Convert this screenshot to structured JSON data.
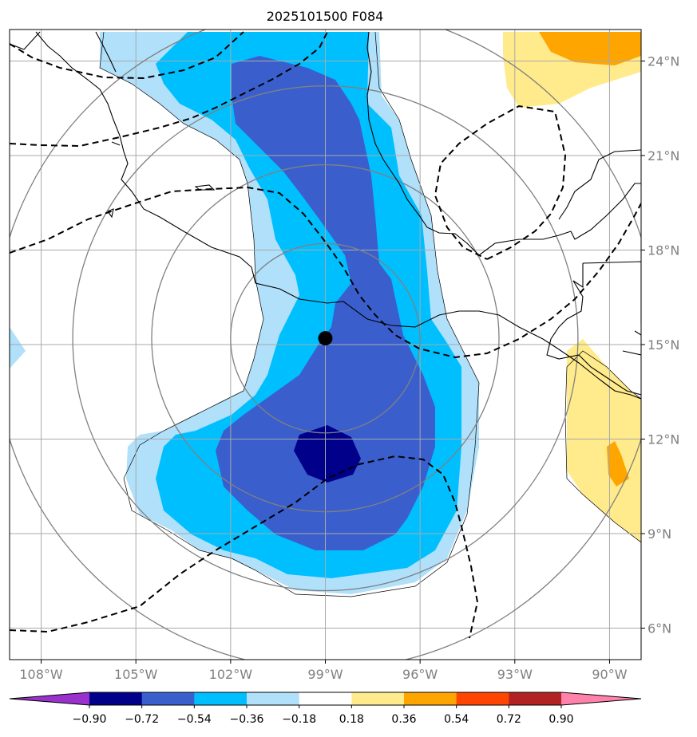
{
  "title": "2025101500 F084",
  "map": {
    "lon_range": [
      -109,
      -89
    ],
    "lat_range": [
      5,
      25
    ],
    "lon_ticks": [
      {
        "value": -108,
        "label": "108°W"
      },
      {
        "value": -105,
        "label": "105°W"
      },
      {
        "value": -102,
        "label": "102°W"
      },
      {
        "value": -99,
        "label": "99°W"
      },
      {
        "value": -96,
        "label": "96°W"
      },
      {
        "value": -93,
        "label": "93°W"
      },
      {
        "value": -90,
        "label": "90°W"
      }
    ],
    "lat_ticks": [
      {
        "value": 24,
        "label": "24°N"
      },
      {
        "value": 21,
        "label": "21°N"
      },
      {
        "value": 18,
        "label": "18°N"
      },
      {
        "value": 15,
        "label": "15°N"
      },
      {
        "value": 12,
        "label": "12°N"
      },
      {
        "value": 9,
        "label": "9°N"
      },
      {
        "value": 6,
        "label": "6°N"
      }
    ],
    "center_marker": {
      "lon": -99.0,
      "lat": 15.2
    },
    "range_rings_deg": [
      3,
      5.5,
      8,
      10.5
    ]
  },
  "colorbar": {
    "levels": [
      "−0.90",
      "−0.72",
      "−0.54",
      "−0.36",
      "−0.18",
      "0.18",
      "0.36",
      "0.54",
      "0.72",
      "0.90"
    ],
    "colors": [
      "#9932cc",
      "#00008b",
      "#3a5fcd",
      "#00bfff",
      "#b0e0fa",
      "#ffffff",
      "#ffeb8b",
      "#ffa500",
      "#ff4500",
      "#b22222",
      "#ff82ab"
    ]
  },
  "colors": {
    "light_blue": "#b0e0fa",
    "sky_blue": "#00bfff",
    "royal_blue": "#3a5fcd",
    "navy": "#00008b",
    "light_yellow": "#ffeb8b",
    "orange": "#ffa500",
    "grid": "#a9a9a9",
    "ring": "#808080"
  }
}
